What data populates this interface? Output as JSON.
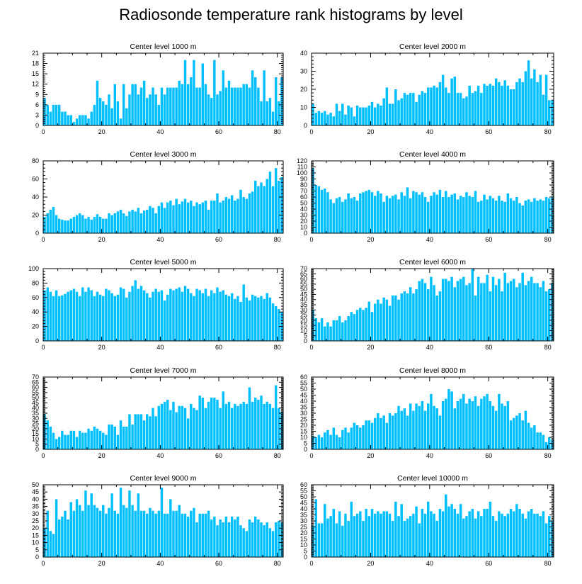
{
  "title": "Radiosonde temperature rank histograms by level",
  "colors": {
    "bar": "#00BFFF",
    "axis": "#000000",
    "background": "#FFFFFF"
  },
  "chart_data": [
    {
      "type": "bar",
      "title": "Center level 1000 m",
      "xlim": [
        0,
        82
      ],
      "ylim": [
        0,
        21
      ],
      "xticks": [
        0,
        20,
        40,
        60,
        80
      ],
      "yticks": [
        0,
        3,
        6,
        9,
        12,
        15,
        18,
        21
      ],
      "values": [
        8,
        6,
        4,
        6,
        6,
        6,
        4,
        4,
        3,
        3,
        1,
        2,
        3,
        3,
        3,
        2,
        4,
        6,
        13,
        8,
        7,
        6,
        9,
        5,
        12,
        7,
        2,
        12,
        5,
        9,
        12,
        12,
        9,
        11,
        13,
        8,
        9,
        11,
        9,
        6,
        11,
        9,
        11,
        11,
        11,
        11,
        13,
        12,
        19,
        12,
        14,
        19,
        11,
        11,
        18,
        12,
        9,
        8,
        19,
        9,
        10,
        16,
        11,
        13,
        11,
        11,
        11,
        11,
        12,
        12,
        11,
        16,
        14,
        11,
        7,
        16,
        7,
        8,
        4,
        14,
        7,
        14
      ]
    },
    {
      "type": "bar",
      "title": "Center level 2000 m",
      "xlim": [
        0,
        82
      ],
      "ylim": [
        0,
        40
      ],
      "xticks": [
        0,
        20,
        40,
        60,
        80
      ],
      "yticks": [
        0,
        10,
        20,
        30,
        40
      ],
      "values": [
        12,
        7,
        8,
        7,
        8,
        6,
        7,
        5,
        12,
        8,
        12,
        6,
        11,
        10,
        5,
        11,
        10,
        10,
        10,
        11,
        13,
        10,
        12,
        11,
        15,
        21,
        12,
        12,
        20,
        14,
        15,
        18,
        17,
        18,
        18,
        13,
        17,
        19,
        18,
        21,
        21,
        22,
        21,
        24,
        28,
        21,
        18,
        26,
        27,
        18,
        18,
        15,
        16,
        22,
        18,
        19,
        22,
        18,
        23,
        22,
        23,
        22,
        26,
        24,
        22,
        25,
        22,
        20,
        20,
        24,
        26,
        24,
        30,
        36,
        26,
        31,
        24,
        28,
        17,
        28,
        14,
        14
      ]
    },
    {
      "type": "bar",
      "title": "Center level 3000 m",
      "xlim": [
        0,
        82
      ],
      "ylim": [
        0,
        80
      ],
      "xticks": [
        0,
        20,
        40,
        60,
        80
      ],
      "yticks": [
        0,
        20,
        40,
        60,
        80
      ],
      "values": [
        18,
        22,
        26,
        29,
        20,
        16,
        15,
        14,
        14,
        16,
        18,
        20,
        22,
        20,
        16,
        18,
        15,
        18,
        21,
        18,
        16,
        16,
        22,
        20,
        22,
        24,
        26,
        22,
        19,
        24,
        26,
        24,
        28,
        22,
        25,
        26,
        30,
        28,
        22,
        30,
        34,
        28,
        34,
        36,
        31,
        38,
        32,
        35,
        38,
        34,
        36,
        30,
        34,
        32,
        34,
        36,
        26,
        36,
        36,
        44,
        34,
        36,
        40,
        38,
        42,
        36,
        38,
        48,
        40,
        38,
        44,
        46,
        58,
        52,
        56,
        52,
        60,
        68,
        52,
        72,
        58,
        62
      ]
    },
    {
      "type": "bar",
      "title": "Center level 4000 m",
      "xlim": [
        0,
        82
      ],
      "ylim": [
        0,
        120
      ],
      "xticks": [
        0,
        20,
        40,
        60,
        80
      ],
      "yticks": [
        0,
        10,
        20,
        30,
        40,
        50,
        60,
        70,
        80,
        90,
        100,
        110,
        120
      ],
      "values": [
        108,
        80,
        78,
        72,
        74,
        68,
        56,
        50,
        58,
        60,
        52,
        56,
        66,
        58,
        60,
        54,
        66,
        68,
        70,
        72,
        68,
        62,
        70,
        66,
        52,
        62,
        58,
        62,
        64,
        56,
        68,
        62,
        76,
        58,
        70,
        68,
        64,
        68,
        60,
        52,
        62,
        68,
        64,
        72,
        60,
        70,
        60,
        64,
        66,
        56,
        62,
        60,
        68,
        62,
        60,
        70,
        52,
        54,
        64,
        56,
        62,
        58,
        54,
        62,
        54,
        52,
        66,
        58,
        54,
        60,
        50,
        46,
        54,
        56,
        52,
        58,
        54,
        56,
        54,
        60,
        58,
        60
      ]
    },
    {
      "type": "bar",
      "title": "Center level 5000 m",
      "xlim": [
        0,
        82
      ],
      "ylim": [
        0,
        100
      ],
      "xticks": [
        0,
        20,
        40,
        60,
        80
      ],
      "yticks": [
        0,
        20,
        40,
        60,
        80,
        100
      ],
      "values": [
        70,
        74,
        68,
        62,
        70,
        62,
        63,
        65,
        68,
        70,
        72,
        68,
        62,
        74,
        68,
        74,
        70,
        62,
        68,
        64,
        62,
        72,
        70,
        66,
        62,
        64,
        74,
        72,
        60,
        68,
        76,
        84,
        72,
        76,
        70,
        66,
        60,
        68,
        72,
        68,
        70,
        56,
        64,
        72,
        70,
        72,
        74,
        68,
        76,
        72,
        66,
        62,
        72,
        70,
        66,
        72,
        62,
        70,
        66,
        74,
        68,
        70,
        64,
        62,
        66,
        58,
        62,
        54,
        78,
        60,
        56,
        64,
        62,
        60,
        62,
        58,
        66,
        60,
        52,
        48,
        44,
        40
      ]
    },
    {
      "type": "bar",
      "title": "Center level 6000 m",
      "xlim": [
        0,
        82
      ],
      "ylim": [
        0,
        70
      ],
      "xticks": [
        0,
        20,
        40,
        60,
        80
      ],
      "yticks": [
        0,
        5,
        10,
        15,
        20,
        25,
        30,
        35,
        40,
        45,
        50,
        55,
        60,
        65,
        70
      ],
      "values": [
        30,
        22,
        18,
        22,
        14,
        18,
        14,
        20,
        20,
        24,
        18,
        20,
        24,
        28,
        26,
        30,
        32,
        30,
        32,
        38,
        28,
        36,
        40,
        36,
        42,
        40,
        34,
        44,
        44,
        40,
        46,
        48,
        46,
        52,
        46,
        50,
        58,
        60,
        56,
        50,
        62,
        54,
        44,
        48,
        60,
        60,
        58,
        62,
        52,
        58,
        60,
        62,
        54,
        56,
        70,
        44,
        62,
        56,
        56,
        64,
        48,
        62,
        54,
        60,
        48,
        66,
        56,
        58,
        60,
        52,
        56,
        66,
        54,
        58,
        62,
        56,
        56,
        52,
        58,
        48,
        50,
        56
      ]
    },
    {
      "type": "bar",
      "title": "Center level 7000 m",
      "xlim": [
        0,
        82
      ],
      "ylim": [
        0,
        70
      ],
      "xticks": [
        0,
        20,
        40,
        60,
        80
      ],
      "yticks": [
        0,
        5,
        10,
        15,
        20,
        25,
        30,
        35,
        40,
        45,
        50,
        55,
        60,
        65,
        70
      ],
      "values": [
        34,
        28,
        22,
        16,
        10,
        12,
        18,
        14,
        14,
        18,
        18,
        12,
        18,
        16,
        16,
        20,
        18,
        22,
        20,
        18,
        16,
        14,
        24,
        24,
        22,
        14,
        28,
        22,
        22,
        34,
        24,
        34,
        34,
        34,
        28,
        34,
        32,
        40,
        32,
        42,
        44,
        46,
        48,
        38,
        46,
        36,
        42,
        42,
        40,
        30,
        44,
        40,
        38,
        52,
        50,
        40,
        46,
        50,
        50,
        48,
        40,
        56,
        44,
        46,
        40,
        44,
        42,
        44,
        46,
        44,
        60,
        46,
        50,
        48,
        52,
        44,
        46,
        44,
        40,
        62,
        40,
        36
      ]
    },
    {
      "type": "bar",
      "title": "Center level 8000 m",
      "xlim": [
        0,
        82
      ],
      "ylim": [
        0,
        60
      ],
      "xticks": [
        0,
        20,
        40,
        60,
        80
      ],
      "yticks": [
        0,
        5,
        10,
        15,
        20,
        25,
        30,
        35,
        40,
        45,
        50,
        55,
        60
      ],
      "values": [
        11,
        10,
        12,
        10,
        14,
        16,
        12,
        18,
        12,
        10,
        16,
        18,
        14,
        18,
        22,
        20,
        18,
        20,
        24,
        24,
        22,
        26,
        30,
        26,
        28,
        22,
        30,
        28,
        30,
        36,
        32,
        34,
        28,
        38,
        32,
        38,
        36,
        40,
        32,
        38,
        46,
        36,
        34,
        28,
        40,
        42,
        50,
        48,
        34,
        40,
        42,
        46,
        38,
        42,
        40,
        44,
        36,
        42,
        44,
        46,
        40,
        36,
        32,
        46,
        38,
        36,
        40,
        24,
        26,
        28,
        30,
        24,
        32,
        22,
        18,
        20,
        14,
        14,
        12,
        6,
        10,
        8
      ]
    },
    {
      "type": "bar",
      "title": "Center level 9000 m",
      "xlim": [
        0,
        82
      ],
      "ylim": [
        0,
        50
      ],
      "xticks": [
        0,
        20,
        40,
        60,
        80
      ],
      "yticks": [
        0,
        5,
        10,
        15,
        20,
        25,
        30,
        35,
        40,
        45,
        50
      ],
      "values": [
        20,
        32,
        18,
        16,
        40,
        26,
        28,
        32,
        26,
        38,
        32,
        40,
        36,
        32,
        46,
        36,
        44,
        36,
        34,
        32,
        36,
        30,
        34,
        44,
        32,
        30,
        48,
        36,
        34,
        46,
        36,
        32,
        44,
        32,
        32,
        30,
        34,
        32,
        30,
        32,
        48,
        30,
        30,
        40,
        32,
        32,
        36,
        30,
        30,
        28,
        32,
        34,
        24,
        30,
        30,
        30,
        32,
        26,
        28,
        22,
        26,
        24,
        28,
        24,
        28,
        26,
        28,
        22,
        20,
        18,
        26,
        24,
        28,
        26,
        24,
        22,
        24,
        20,
        18,
        24,
        25,
        24
      ]
    },
    {
      "type": "bar",
      "title": "Center level 10000 m",
      "xlim": [
        0,
        82
      ],
      "ylim": [
        0,
        60
      ],
      "xticks": [
        0,
        20,
        40,
        60,
        80
      ],
      "yticks": [
        0,
        5,
        10,
        15,
        20,
        25,
        30,
        35,
        40,
        45,
        50,
        55,
        60
      ],
      "values": [
        26,
        48,
        28,
        28,
        44,
        32,
        34,
        40,
        28,
        38,
        26,
        36,
        30,
        46,
        34,
        36,
        38,
        30,
        40,
        34,
        40,
        36,
        38,
        36,
        38,
        38,
        36,
        30,
        46,
        34,
        44,
        30,
        32,
        34,
        36,
        42,
        28,
        40,
        36,
        46,
        38,
        36,
        30,
        40,
        38,
        52,
        42,
        44,
        40,
        36,
        44,
        32,
        34,
        38,
        40,
        32,
        38,
        34,
        40,
        40,
        46,
        34,
        30,
        38,
        36,
        34,
        36,
        40,
        38,
        44,
        40,
        36,
        32,
        38,
        40,
        36,
        36,
        34,
        38,
        28,
        34,
        30
      ]
    }
  ]
}
